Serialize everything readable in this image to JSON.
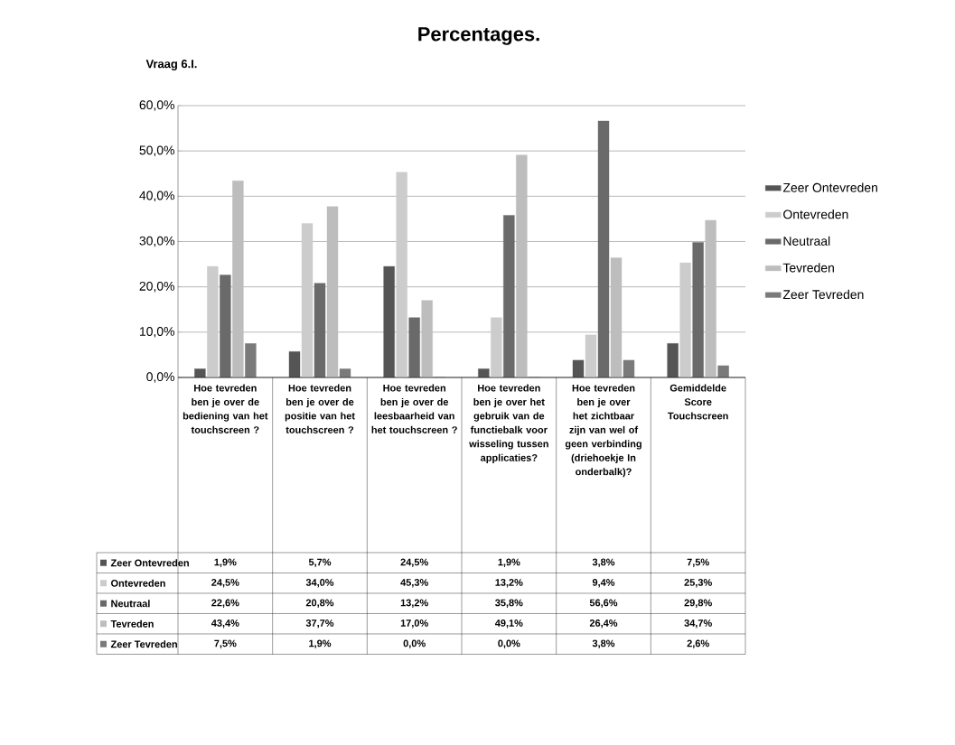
{
  "chart_data": {
    "type": "bar",
    "title": "Percentages.",
    "subtitle": "Vraag 6.I.",
    "categories": [
      "Hoe tevreden ben je over de bediening van het touchscreen ?",
      "Hoe tevreden ben je over de positie van het touchscreen ?",
      "Hoe tevreden ben je over de leesbaarheid van het touchscreen ?",
      "Hoe tevreden ben je over het gebruik van de functiebalk voor wisseling tussen applicaties?",
      "Hoe tevreden ben je over het zichtbaar zijn van wel of geen verbinding (driehoekje In onderbalk)?",
      "Gemiddelde Score Touchscreen"
    ],
    "series": [
      {
        "name": "Zeer Ontevreden",
        "color": "#555555",
        "values": [
          1.9,
          5.7,
          24.5,
          1.9,
          3.8,
          7.5
        ],
        "value_labels": [
          "1,9%",
          "5,7%",
          "24,5%",
          "1,9%",
          "3,8%",
          "7,5%"
        ]
      },
      {
        "name": "Ontevreden",
        "color": "#cccccc",
        "values": [
          24.5,
          34.0,
          45.3,
          13.2,
          9.4,
          25.3
        ],
        "value_labels": [
          "24,5%",
          "34,0%",
          "45,3%",
          "13,2%",
          "9,4%",
          "25,3%"
        ]
      },
      {
        "name": "Neutraal",
        "color": "#6a6a6a",
        "values": [
          22.6,
          20.8,
          13.2,
          35.8,
          56.6,
          29.8
        ],
        "value_labels": [
          "22,6%",
          "20,8%",
          "13,2%",
          "35,8%",
          "56,6%",
          "29,8%"
        ]
      },
      {
        "name": "Tevreden",
        "color": "#bdbdbd",
        "values": [
          43.4,
          37.7,
          17.0,
          49.1,
          26.4,
          34.7
        ],
        "value_labels": [
          "43,4%",
          "37,7%",
          "17,0%",
          "49,1%",
          "26,4%",
          "34,7%"
        ]
      },
      {
        "name": "Zeer Tevreden",
        "color": "#7a7a7a",
        "values": [
          7.5,
          1.9,
          0.0,
          0.0,
          3.8,
          2.6
        ],
        "value_labels": [
          "7,5%",
          "1,9%",
          "0,0%",
          "0,0%",
          "3,8%",
          "2,6%"
        ]
      }
    ],
    "ylim": [
      0,
      60
    ],
    "yticks": [
      {
        "value": 0,
        "label": "0,0%"
      },
      {
        "value": 10,
        "label": "10,0%"
      },
      {
        "value": 20,
        "label": "20,0%"
      },
      {
        "value": 30,
        "label": "30,0%"
      },
      {
        "value": 40,
        "label": "40,0%"
      },
      {
        "value": 50,
        "label": "50,0%"
      },
      {
        "value": 60,
        "label": "60,0%"
      }
    ],
    "grid": "y",
    "legend": "right"
  }
}
